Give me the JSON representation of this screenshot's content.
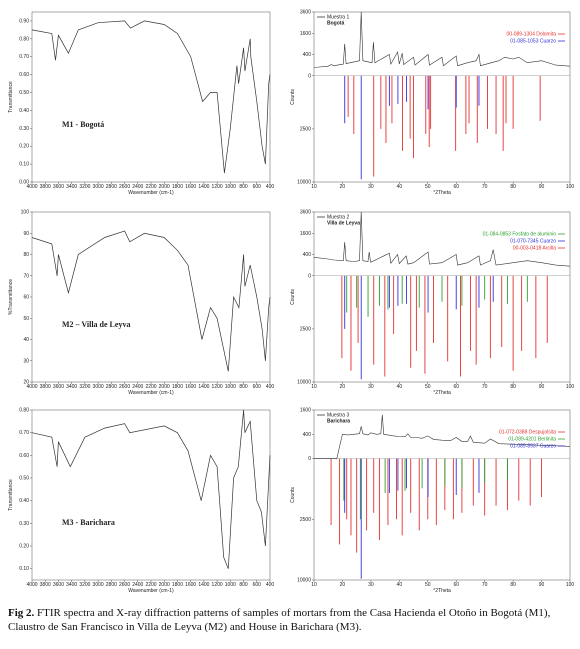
{
  "chart_data": [
    {
      "type": "line",
      "annotation": "M1 - Bogotá",
      "xlabel": "Wavenumber (cm-1)",
      "ylabel": "Transmittance",
      "color": "#333333",
      "x": [
        4000,
        3700,
        3645,
        3600,
        3450,
        3300,
        3000,
        2600,
        2510,
        2300,
        2000,
        1800,
        1600,
        1420,
        1300,
        1200,
        1090,
        1000,
        900,
        875,
        800,
        780,
        700,
        690,
        600,
        520,
        470,
        420,
        400
      ],
      "values": [
        0.85,
        0.83,
        0.68,
        0.82,
        0.72,
        0.85,
        0.89,
        0.9,
        0.86,
        0.9,
        0.88,
        0.83,
        0.7,
        0.45,
        0.5,
        0.5,
        0.05,
        0.3,
        0.65,
        0.55,
        0.75,
        0.62,
        0.8,
        0.7,
        0.45,
        0.2,
        0.1,
        0.55,
        0.6
      ],
      "xlim": [
        4000,
        400
      ],
      "xticks": [
        4000,
        3800,
        3600,
        3400,
        3200,
        3000,
        2800,
        2600,
        2400,
        2200,
        2000,
        1800,
        1600,
        1400,
        1200,
        1000,
        800,
        600,
        400
      ],
      "ylim": [
        0,
        0.95
      ],
      "yticks": [
        {
          "value": 0,
          "label": "0.00"
        },
        {
          "value": 0.1,
          "label": "0.10"
        },
        {
          "value": 0.2,
          "label": "0.20"
        },
        {
          "value": 0.3,
          "label": "0.30"
        },
        {
          "value": 0.4,
          "label": "0.40"
        },
        {
          "value": 0.5,
          "label": "0.50"
        },
        {
          "value": 0.6,
          "label": "0.60"
        },
        {
          "value": 0.7,
          "label": "0.70"
        },
        {
          "value": 0.8,
          "label": "0.80"
        },
        {
          "value": 0.9,
          "label": "0.90"
        }
      ]
    },
    {
      "type": "xrd",
      "ylabel": "Counts",
      "xlabel": "°2Theta",
      "sample": {
        "name": "Muestra 1",
        "site": "Bogotá"
      },
      "yscale": "sqrt",
      "x": [
        10,
        15,
        16,
        17,
        20.3,
        20.8,
        21.3,
        26,
        26.6,
        27.2,
        30.4,
        30.9,
        31.4,
        36.5,
        37,
        39.4,
        40,
        41,
        41.5,
        45,
        45.5,
        50.1,
        50.6,
        55,
        55.5,
        60,
        60.5,
        64,
        67,
        68,
        68.5,
        75,
        77,
        80,
        82,
        85,
        90,
        95,
        100
      ],
      "values": [
        60,
        80,
        110,
        90,
        120,
        900,
        130,
        200,
        3600,
        200,
        150,
        1000,
        150,
        400,
        120,
        500,
        120,
        450,
        110,
        300,
        100,
        400,
        100,
        300,
        90,
        350,
        90,
        150,
        200,
        400,
        90,
        200,
        300,
        250,
        300,
        150,
        200,
        100,
        80
      ],
      "series": [
        {
          "name": "00-089-1304 Dolomita",
          "color": "#e53030",
          "x": [
            22,
            24,
            31,
            33.5,
            35.3,
            37.4,
            41.1,
            43.8,
            45,
            49.3,
            50.5,
            51,
            59.8,
            63.4,
            64.5,
            67.4,
            71,
            74,
            76.5,
            77.5,
            80,
            89.5
          ],
          "values": [
            -1500,
            -3000,
            -9000,
            -2500,
            -4000,
            -2000,
            -5000,
            -3500,
            -6000,
            -3000,
            -4500,
            -2500,
            -5000,
            -3000,
            -2000,
            -4000,
            -2500,
            -3000,
            -5000,
            -2000,
            -2500,
            -1800
          ]
        },
        {
          "name": "01-085-1053 Cuarzo",
          "color": "#3030e0",
          "x": [
            20.8,
            26.6,
            36.5,
            39.5,
            42.5,
            50.1,
            60,
            68
          ],
          "values": [
            -2000,
            -9500,
            -800,
            -700,
            -600,
            -1000,
            -900,
            -800
          ]
        }
      ],
      "xlim": [
        10,
        100
      ],
      "xticks": [
        10,
        20,
        30,
        40,
        50,
        60,
        70,
        80,
        90,
        100
      ],
      "ylim": [
        -10000,
        3600
      ],
      "yticks": [
        {
          "value": -10000,
          "label": "10000"
        },
        {
          "value": -2500,
          "label": "2500"
        },
        0,
        400,
        1600,
        3600
      ]
    },
    {
      "type": "line",
      "annotation": "M2 – Villa de Leyva",
      "xlabel": "Wavenumber (cm-1)",
      "ylabel": "%Transmittance",
      "color": "#333333",
      "x": [
        4000,
        3700,
        3620,
        3600,
        3450,
        3300,
        2900,
        2600,
        2520,
        2300,
        2000,
        1800,
        1640,
        1430,
        1300,
        1200,
        1030,
        950,
        870,
        800,
        780,
        700,
        600,
        520,
        470,
        420,
        400
      ],
      "values": [
        88,
        85,
        70,
        80,
        62,
        80,
        88,
        91,
        86,
        90,
        88,
        82,
        75,
        40,
        55,
        50,
        25,
        60,
        55,
        80,
        65,
        75,
        60,
        45,
        30,
        55,
        60
      ],
      "xlim": [
        4000,
        400
      ],
      "xticks": [
        4000,
        3800,
        3600,
        3400,
        3200,
        3000,
        2800,
        2600,
        2400,
        2200,
        2000,
        1800,
        1600,
        1400,
        1200,
        1000,
        800,
        600,
        400
      ],
      "ylim": [
        20,
        100
      ],
      "yticks": [
        20,
        30,
        40,
        50,
        60,
        70,
        80,
        90,
        100
      ]
    },
    {
      "type": "xrd",
      "ylabel": "Counts",
      "xlabel": "°2Theta",
      "sample": {
        "name": "Muestra 2",
        "site": "Villa de Leyva"
      },
      "yscale": "sqrt",
      "x": [
        10,
        15,
        17,
        20.3,
        20.8,
        21.3,
        24,
        26,
        26.6,
        27.2,
        29,
        29.4,
        29.9,
        36.5,
        37,
        39.4,
        40,
        42.4,
        43,
        45,
        50.1,
        50.6,
        55,
        60,
        60.5,
        64,
        68,
        68.5,
        72,
        73,
        74,
        80,
        85,
        90,
        95,
        100
      ],
      "values": [
        300,
        250,
        220,
        200,
        1000,
        200,
        180,
        200,
        3600,
        200,
        180,
        500,
        160,
        450,
        140,
        400,
        130,
        350,
        120,
        150,
        500,
        120,
        150,
        400,
        100,
        150,
        350,
        100,
        200,
        600,
        100,
        150,
        200,
        150,
        100,
        80
      ],
      "series": [
        {
          "name": "01-084-0853 Fosfato de aluminio",
          "color": "#2ca02c",
          "x": [
            21.5,
            25,
            29,
            33,
            36,
            41,
            47,
            55,
            62,
            70,
            78,
            85
          ],
          "values": [
            -1200,
            -900,
            -1500,
            -800,
            -1000,
            -700,
            -900,
            -600,
            -800,
            -500,
            -700,
            -600
          ]
        },
        {
          "name": "01-070-7345 Cuarzo",
          "color": "#3030e0",
          "x": [
            20.8,
            26.6,
            36.5,
            39.5,
            42.5,
            50.1,
            60,
            68,
            73
          ],
          "values": [
            -2500,
            -9500,
            -900,
            -800,
            -700,
            -1200,
            -1000,
            -900,
            -600
          ]
        },
        {
          "name": "00-003-0418 Arcilla",
          "color": "#e53030",
          "x": [
            19.8,
            23,
            25.5,
            31,
            34.9,
            38,
            44,
            46,
            49,
            52,
            57,
            61.5,
            65,
            67,
            72,
            76,
            80,
            83,
            88,
            92
          ],
          "values": [
            -6000,
            -8000,
            -4000,
            -7000,
            -9000,
            -3000,
            -7500,
            -5000,
            -8500,
            -4000,
            -6500,
            -9000,
            -5000,
            -7000,
            -6000,
            -4500,
            -8000,
            -5000,
            -6000,
            -4000
          ]
        }
      ],
      "xlim": [
        10,
        100
      ],
      "xticks": [
        10,
        20,
        30,
        40,
        50,
        60,
        70,
        80,
        90,
        100
      ],
      "ylim": [
        -10000,
        3600
      ],
      "yticks": [
        {
          "value": -10000,
          "label": "10000"
        },
        {
          "value": -2500,
          "label": "2500"
        },
        0,
        400,
        1600,
        3600
      ]
    },
    {
      "type": "line",
      "annotation": "M3 - Barichara",
      "xlabel": "Wavenumber (cm-1)",
      "ylabel": "Transmittance",
      "color": "#333333",
      "x": [
        4000,
        3700,
        3620,
        3600,
        3420,
        3200,
        2900,
        2600,
        2520,
        2000,
        1800,
        1640,
        1440,
        1300,
        1200,
        1100,
        1030,
        950,
        880,
        800,
        780,
        700,
        600,
        530,
        470,
        400
      ],
      "values": [
        0.7,
        0.68,
        0.55,
        0.66,
        0.55,
        0.68,
        0.72,
        0.74,
        0.7,
        0.73,
        0.7,
        0.62,
        0.4,
        0.6,
        0.55,
        0.15,
        0.1,
        0.5,
        0.55,
        0.8,
        0.7,
        0.75,
        0.4,
        0.35,
        0.2,
        0.6
      ],
      "xlim": [
        4000,
        400
      ],
      "xticks": [
        4000,
        3800,
        3600,
        3400,
        3200,
        3000,
        2800,
        2600,
        2400,
        2200,
        2000,
        1800,
        1600,
        1400,
        1200,
        1000,
        800,
        600,
        400
      ],
      "ylim": [
        0.05,
        0.8
      ],
      "yticks": [
        {
          "value": 0.1,
          "label": "0.10"
        },
        {
          "value": 0.2,
          "label": "0.20"
        },
        {
          "value": 0.3,
          "label": "0.30"
        },
        {
          "value": 0.4,
          "label": "0.40"
        },
        {
          "value": 0.5,
          "label": "0.50"
        },
        {
          "value": 0.6,
          "label": "0.60"
        },
        {
          "value": 0.7,
          "label": "0.70"
        },
        {
          "value": 0.8,
          "label": "0.80"
        }
      ]
    },
    {
      "type": "xrd",
      "ylabel": "Counts",
      "xlabel": "°2Theta",
      "sample": {
        "name": "Muestra 3",
        "site": "Barichara"
      },
      "yscale": "sqrt",
      "x": [
        10,
        18,
        20,
        22,
        24,
        26,
        26.6,
        27.2,
        28,
        29,
        30,
        32,
        33.5,
        34,
        34.5,
        36,
        38,
        40,
        42,
        43,
        44,
        46,
        48,
        50,
        52,
        55,
        58,
        60,
        62,
        64,
        65,
        66,
        70,
        72,
        75,
        80,
        85,
        90,
        95,
        100
      ],
      "values": [
        0,
        0,
        400,
        380,
        400,
        420,
        700,
        420,
        400,
        380,
        450,
        400,
        420,
        1300,
        400,
        380,
        350,
        330,
        320,
        420,
        300,
        300,
        280,
        350,
        250,
        230,
        220,
        300,
        200,
        200,
        350,
        180,
        160,
        260,
        150,
        140,
        130,
        120,
        110,
        100
      ],
      "series": [
        {
          "name": "01-072-0388 Despujolsita",
          "color": "#e53030",
          "x": [
            16,
            19,
            21.5,
            23,
            25,
            28.5,
            31,
            33,
            36,
            39,
            41,
            44,
            47,
            50,
            53,
            56,
            59,
            62,
            66,
            70,
            74,
            78,
            82,
            86,
            90
          ],
          "values": [
            -3000,
            -5000,
            -2500,
            -4000,
            -6000,
            -3500,
            -2000,
            -4500,
            -3000,
            -2500,
            -4000,
            -2000,
            -3500,
            -2500,
            -3000,
            -1800,
            -2500,
            -2000,
            -1500,
            -2200,
            -1500,
            -1800,
            -1200,
            -1500,
            -1000
          ]
        },
        {
          "name": "01-089-4201 Berlinita",
          "color": "#2ca02c",
          "x": [
            20.5,
            26.3,
            35,
            42,
            48,
            56,
            62,
            70,
            78
          ],
          "values": [
            -1200,
            -2500,
            -800,
            -700,
            -600,
            -500,
            -600,
            -400,
            -300
          ]
        },
        {
          "name": "01-089-8937 Cuarzo",
          "color": "#3030e0",
          "x": [
            20.8,
            26.6,
            36.5,
            39.5,
            42.5,
            50.1,
            60,
            68
          ],
          "values": [
            -2000,
            -9800,
            -800,
            -700,
            -600,
            -1000,
            -900,
            -800
          ]
        }
      ],
      "xlim": [
        10,
        100
      ],
      "xticks": [
        10,
        20,
        30,
        40,
        50,
        60,
        70,
        80,
        90,
        100
      ],
      "ylim": [
        -10000,
        1600
      ],
      "yticks": [
        {
          "value": -10000,
          "label": "10000"
        },
        {
          "value": -2500,
          "label": "2500"
        },
        0,
        400,
        1600
      ]
    }
  ],
  "caption": {
    "label": "Fig 2.",
    "text": " FTIR spectra and X-ray diffraction patterns of samples of mortars from the Casa Hacienda el Otoño in Bogotá (M1), Claustro de San Francisco in Villa de Leyva (M2) and House in Barichara (M3)."
  }
}
